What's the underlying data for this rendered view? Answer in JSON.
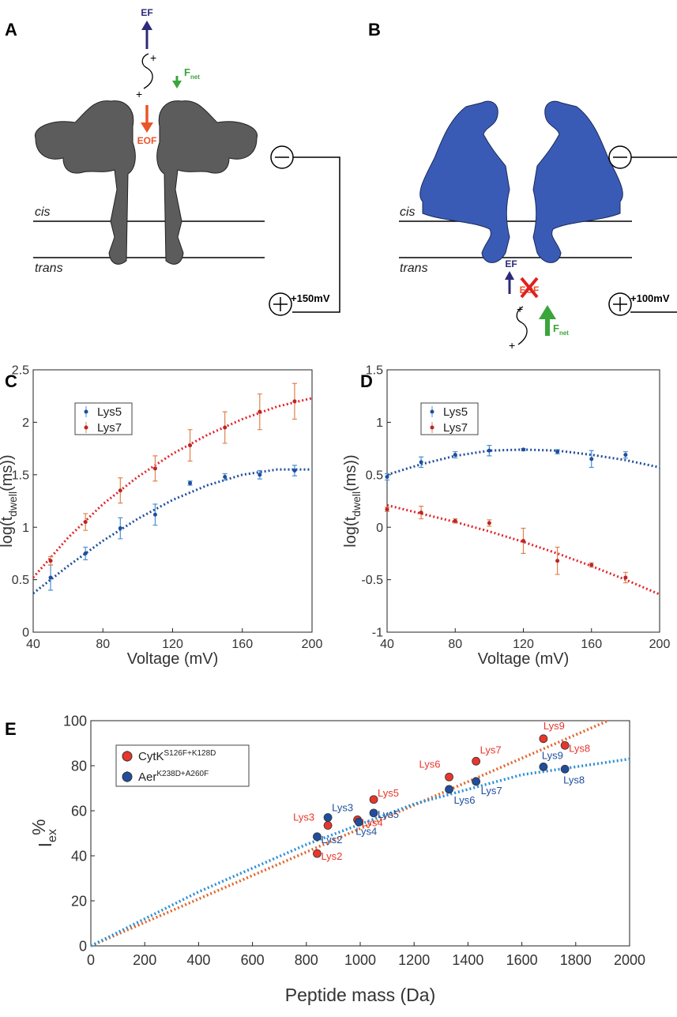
{
  "panel_labels": [
    "A",
    "B",
    "C",
    "D",
    "E"
  ],
  "diagrams": [
    {
      "EF": "EF",
      "plus_signs": [
        "+",
        "+"
      ],
      "F": "F",
      "net": "net",
      "EOF": "EOF",
      "cis": "cis",
      "trans": "trans",
      "voltage": "+150mV"
    },
    {
      "EF": "EF",
      "plus_signs": [
        "+",
        "+"
      ],
      "F": "F",
      "net": "net",
      "EOF": "EOF",
      "cis": "cis",
      "trans": "trans",
      "voltage": "+100mV"
    }
  ],
  "chart_data": [
    {
      "type": "scatter",
      "xlabel": "Voltage (mV)",
      "ylabel": {
        "main": "log(t",
        "sub": "dwell",
        "tail": "(ms))"
      },
      "xlim": [
        40,
        200
      ],
      "ylim": [
        0,
        2.5
      ],
      "xticks": [
        40,
        80,
        120,
        160,
        200
      ],
      "yticks": [
        0,
        0.5,
        1,
        1.5,
        2,
        2.5
      ],
      "series": [
        {
          "name": "Lys5",
          "color": "#1f4e9c",
          "error_color": "#4a90d0",
          "fit_color": "#1f4e9c",
          "x": [
            50,
            70,
            90,
            110,
            130,
            150,
            170,
            190
          ],
          "values": [
            0.52,
            0.75,
            0.99,
            1.12,
            1.42,
            1.48,
            1.5,
            1.54
          ],
          "errors": [
            0.12,
            0.06,
            0.1,
            0.1,
            0.02,
            0.03,
            0.04,
            0.05
          ],
          "fit": {
            "x": [
              40,
              60,
              80,
              100,
              120,
              140,
              160,
              180,
              200
            ],
            "values": [
              0.37,
              0.63,
              0.87,
              1.08,
              1.26,
              1.4,
              1.5,
              1.55,
              1.55
            ]
          }
        },
        {
          "name": "Lys7",
          "color": "#b8262a",
          "error_color": "#e0834a",
          "fit_color": "#e0262b",
          "x": [
            50,
            70,
            90,
            110,
            130,
            150,
            170,
            190
          ],
          "values": [
            0.68,
            1.05,
            1.35,
            1.56,
            1.78,
            1.95,
            2.1,
            2.2
          ],
          "errors": [
            0.04,
            0.08,
            0.12,
            0.12,
            0.15,
            0.15,
            0.17,
            0.17
          ],
          "fit": {
            "x": [
              40,
              60,
              80,
              100,
              120,
              140,
              160,
              180,
              200
            ],
            "values": [
              0.52,
              0.9,
              1.22,
              1.48,
              1.7,
              1.88,
              2.03,
              2.15,
              2.23
            ]
          }
        }
      ]
    },
    {
      "type": "scatter",
      "xlabel": "Voltage (mV)",
      "ylabel": {
        "main": "log(t",
        "sub": "dwell",
        "tail": "(ms))"
      },
      "xlim": [
        40,
        200
      ],
      "ylim": [
        -1,
        1.5
      ],
      "xticks": [
        40,
        80,
        120,
        160,
        200
      ],
      "yticks": [
        -1,
        -0.5,
        0,
        0.5,
        1,
        1.5
      ],
      "series": [
        {
          "name": "Lys5",
          "color": "#1f4e9c",
          "error_color": "#4a90d0",
          "fit_color": "#1f4e9c",
          "x": [
            40,
            60,
            80,
            100,
            120,
            140,
            160,
            180
          ],
          "values": [
            0.48,
            0.62,
            0.69,
            0.73,
            0.74,
            0.72,
            0.65,
            0.69
          ],
          "errors": [
            0.03,
            0.05,
            0.03,
            0.05,
            0.01,
            0.02,
            0.08,
            0.03
          ],
          "fit": {
            "x": [
              40,
              60,
              80,
              100,
              120,
              140,
              160,
              180,
              200
            ],
            "values": [
              0.5,
              0.6,
              0.68,
              0.73,
              0.74,
              0.73,
              0.69,
              0.64,
              0.57
            ]
          }
        },
        {
          "name": "Lys7",
          "color": "#b8262a",
          "error_color": "#e0834a",
          "fit_color": "#e0262b",
          "x": [
            40,
            60,
            80,
            100,
            120,
            140,
            160,
            180
          ],
          "values": [
            0.17,
            0.14,
            0.06,
            0.04,
            -0.13,
            -0.32,
            -0.36,
            -0.48
          ],
          "errors": [
            0.02,
            0.06,
            0.02,
            0.03,
            0.12,
            0.13,
            0.02,
            0.05
          ],
          "fit": {
            "x": [
              40,
              60,
              80,
              100,
              120,
              140,
              160,
              180,
              200
            ],
            "values": [
              0.21,
              0.13,
              0.05,
              -0.04,
              -0.14,
              -0.25,
              -0.37,
              -0.5,
              -0.64
            ]
          }
        }
      ]
    },
    {
      "type": "scatter",
      "xlabel": "Peptide mass (Da)",
      "ylabel": {
        "main": "I",
        "sub": "ex",
        "sup": "%"
      },
      "xlim": [
        0,
        2000
      ],
      "ylim": [
        0,
        100
      ],
      "xticks": [
        0,
        200,
        400,
        600,
        800,
        1000,
        1200,
        1400,
        1600,
        1800,
        2000
      ],
      "yticks": [
        0,
        20,
        40,
        60,
        80,
        100
      ],
      "series": [
        {
          "name": "CytK",
          "name_sup": "S126F+K128D",
          "color": "#e8362c",
          "fit_color": "#e0652a",
          "x": [
            840,
            880,
            990,
            1050,
            1330,
            1430,
            1760,
            1680
          ],
          "values": [
            41,
            53.5,
            56,
            65,
            75,
            82,
            89,
            92
          ],
          "point_labels": [
            "Lys2",
            "Lys3",
            "Lys4",
            "Lys5",
            "Lys6",
            "Lys7",
            "Lys8",
            "Lys9"
          ],
          "fit": {
            "x": [
              0,
              1920
            ],
            "values": [
              0,
              100
            ]
          }
        },
        {
          "name": "Aer",
          "name_sup": "K238D+A260F",
          "color": "#1f4e9c",
          "fit_color": "#2b8fd6",
          "x": [
            840,
            880,
            995,
            1050,
            1330,
            1430,
            1760,
            1680
          ],
          "values": [
            48.5,
            57,
            55,
            59,
            69.5,
            73,
            78.5,
            79.5
          ],
          "point_labels": [
            "Lys2",
            "Lys3",
            "Lys4",
            "Lys5",
            "Lys6",
            "Lys7",
            "Lys8",
            "Lys9"
          ],
          "fit": {
            "x": [
              0,
              400,
              800,
              1200,
              1600,
              2000
            ],
            "values": [
              0,
              24,
              45,
              63,
              76,
              83
            ]
          }
        }
      ]
    }
  ]
}
